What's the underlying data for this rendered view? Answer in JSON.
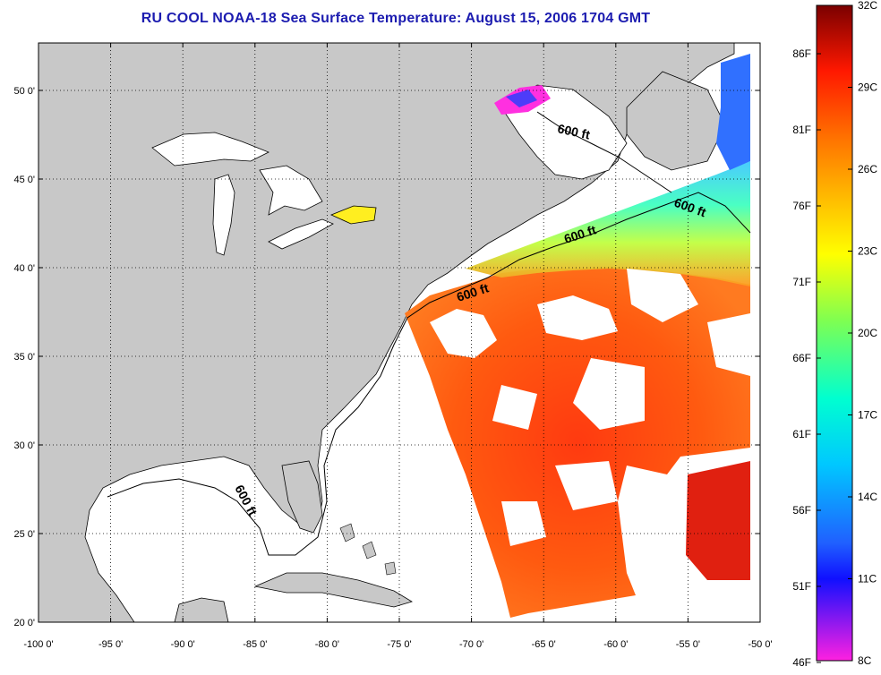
{
  "title": "RU COOL  NOAA-18  Sea Surface Temperature:  August 15, 2006 1704 GMT",
  "map": {
    "x_ticks": [
      "-100 0'",
      "-95 0'",
      "-90 0'",
      "-85 0'",
      "-80 0'",
      "-75 0'",
      "-70 0'",
      "-65 0'",
      "-60 0'",
      "-55 0'",
      "-50 0'"
    ],
    "y_ticks": [
      "50 0'",
      "45 0'",
      "40 0'",
      "35 0'",
      "30 0'",
      "25 0'",
      "20 0'"
    ],
    "contour_labels": [
      "600 ft",
      "600 ft",
      "600 ft",
      "600 ft",
      "600 ft"
    ],
    "land_color": "#c8c8c8",
    "grid": "dotted"
  },
  "colorbar": {
    "celsius_labels": [
      "32C",
      "29C",
      "26C",
      "23C",
      "20C",
      "17C",
      "14C",
      "11C",
      "8C"
    ],
    "fahrenheit_labels": [
      "86F",
      "81F",
      "76F",
      "71F",
      "66F",
      "61F",
      "56F",
      "51F",
      "46F"
    ],
    "colors": [
      "#7a0000",
      "#ff0000",
      "#ff7a00",
      "#ffd000",
      "#ffff00",
      "#8cff40",
      "#00ffbf",
      "#00c8ff",
      "#2080ff",
      "#0000ff",
      "#ff20e0"
    ]
  }
}
